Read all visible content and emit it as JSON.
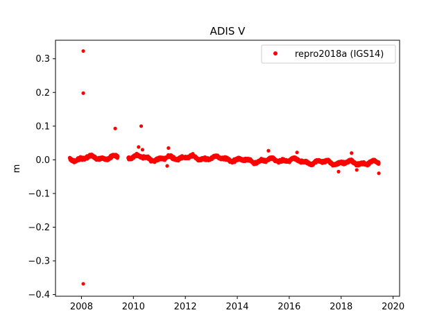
{
  "chart_data": {
    "type": "scatter",
    "title": "ADIS V",
    "xlabel": "",
    "ylabel": "m",
    "xlim": [
      2007.0,
      2020.25
    ],
    "ylim": [
      -0.405,
      0.355
    ],
    "xticks": [
      2008,
      2010,
      2012,
      2014,
      2016,
      2018,
      2020
    ],
    "yticks": [
      -0.4,
      -0.3,
      -0.2,
      -0.1,
      0.0,
      0.1,
      0.2,
      0.3
    ],
    "ytick_labels": [
      "−0.4",
      "−0.3",
      "−0.2",
      "−0.1",
      "0.0",
      "0.1",
      "0.2",
      "0.3"
    ],
    "legend": {
      "position": "top-right",
      "entries": [
        "repro2018a (IGS14)"
      ]
    },
    "series": [
      {
        "name": "repro2018a (IGS14)",
        "color": "#ff0000",
        "marker": "circle",
        "segments": [
          {
            "start": 2007.55,
            "end": 2009.4
          },
          {
            "start": 2009.8,
            "end": 2019.45
          }
        ],
        "baseline": [
          [
            2007.55,
            0.003
          ],
          [
            2008.0,
            0.002
          ],
          [
            2008.5,
            0.008
          ],
          [
            2009.0,
            0.004
          ],
          [
            2009.4,
            0.008
          ],
          [
            2009.8,
            0.01
          ],
          [
            2010.5,
            0.006
          ],
          [
            2011.0,
            0.001
          ],
          [
            2011.5,
            0.006
          ],
          [
            2012.0,
            0.008
          ],
          [
            2012.5,
            0.004
          ],
          [
            2013.0,
            0.006
          ],
          [
            2013.5,
            0.003
          ],
          [
            2014.0,
            0.0
          ],
          [
            2014.5,
            -0.004
          ],
          [
            2015.0,
            -0.002
          ],
          [
            2015.5,
            0.0
          ],
          [
            2016.0,
            0.0
          ],
          [
            2016.5,
            -0.005
          ],
          [
            2017.0,
            -0.008
          ],
          [
            2017.5,
            -0.006
          ],
          [
            2018.0,
            -0.01
          ],
          [
            2018.5,
            -0.008
          ],
          [
            2019.0,
            -0.01
          ],
          [
            2019.45,
            -0.008
          ]
        ],
        "outliers": [
          [
            2008.07,
            0.323
          ],
          [
            2008.07,
            0.198
          ],
          [
            2008.07,
            -0.368
          ],
          [
            2009.3,
            0.093
          ],
          [
            2010.3,
            0.1
          ],
          [
            2010.2,
            0.038
          ],
          [
            2010.35,
            0.03
          ],
          [
            2011.35,
            0.035
          ],
          [
            2011.3,
            -0.018
          ],
          [
            2015.2,
            0.027
          ],
          [
            2016.3,
            0.022
          ],
          [
            2017.9,
            -0.035
          ],
          [
            2018.4,
            0.02
          ],
          [
            2018.6,
            -0.03
          ],
          [
            2019.45,
            -0.04
          ]
        ]
      }
    ]
  }
}
